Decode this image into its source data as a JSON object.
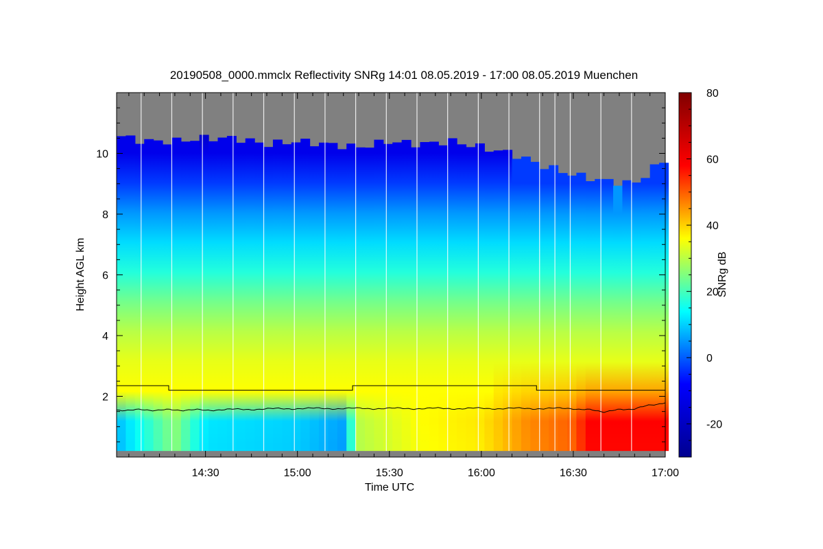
{
  "chart_data": {
    "type": "heatmap",
    "title": "20190508_0000.mmclx Reflectivity SNRg   14:01 08.05.2019 - 17:00 08.05.2019 Muenchen",
    "xlabel": "Time UTC",
    "ylabel": "Height AGL km",
    "colorbar_label": "SNRg dB",
    "x_range": [
      "14:01",
      "17:00"
    ],
    "x_ticks": [
      "14:30",
      "15:00",
      "15:30",
      "16:00",
      "16:30",
      "17:00"
    ],
    "ylim": [
      0,
      12
    ],
    "y_ticks": [
      "2",
      "4",
      "6",
      "8",
      "10"
    ],
    "colorbar_range": [
      -30,
      80
    ],
    "colorbar_ticks": [
      "-20",
      "0",
      "20",
      "40",
      "60",
      "80"
    ],
    "no_data_color": "#808080",
    "colormap": [
      "#00008f",
      "#0000ff",
      "#00ffff",
      "#ffff00",
      "#ff0000",
      "#800000"
    ],
    "signal_top_km": [
      [
        "14:01",
        10.6
      ],
      [
        "14:10",
        10.4
      ],
      [
        "14:20",
        10.4
      ],
      [
        "14:30",
        10.5
      ],
      [
        "14:40",
        10.5
      ],
      [
        "14:50",
        10.3
      ],
      [
        "15:00",
        10.4
      ],
      [
        "15:10",
        10.3
      ],
      [
        "15:20",
        10.2
      ],
      [
        "15:30",
        10.4
      ],
      [
        "15:40",
        10.3
      ],
      [
        "15:50",
        10.4
      ],
      [
        "16:00",
        10.2
      ],
      [
        "16:10",
        10.0
      ],
      [
        "16:20",
        9.6
      ],
      [
        "16:30",
        9.3
      ],
      [
        "16:40",
        9.1
      ],
      [
        "16:50",
        9.0
      ],
      [
        "17:00",
        9.8
      ]
    ],
    "snr_profile_db": [
      [
        0.2,
        28
      ],
      [
        1.0,
        30
      ],
      [
        2.0,
        36
      ],
      [
        3.0,
        34
      ],
      [
        4.0,
        30
      ],
      [
        5.0,
        24
      ],
      [
        6.0,
        17
      ],
      [
        7.0,
        11
      ],
      [
        8.0,
        5
      ],
      [
        9.0,
        -3
      ],
      [
        10.0,
        -12
      ],
      [
        10.6,
        -18
      ]
    ],
    "snr_low_layer_db": [
      [
        "14:01",
        8
      ],
      [
        "14:20",
        26
      ],
      [
        "14:30",
        12
      ],
      [
        "15:00",
        10
      ],
      [
        "15:15",
        6
      ],
      [
        "15:20",
        30
      ],
      [
        "15:40",
        36
      ],
      [
        "16:00",
        38
      ],
      [
        "16:15",
        46
      ],
      [
        "16:30",
        50
      ],
      [
        "16:35",
        58
      ],
      [
        "17:00",
        58
      ]
    ],
    "series": [
      {
        "values": [
          [
            "14:01",
            2.35
          ],
          [
            "14:18",
            2.35
          ],
          [
            "14:18",
            2.2
          ],
          [
            "15:18",
            2.2
          ],
          [
            "15:18",
            2.35
          ],
          [
            "16:18",
            2.35
          ],
          [
            "16:18",
            2.2
          ],
          [
            "17:00",
            2.2
          ]
        ]
      },
      {
        "values": [
          [
            "14:01",
            1.55
          ],
          [
            "14:30",
            1.55
          ],
          [
            "15:00",
            1.6
          ],
          [
            "15:30",
            1.6
          ],
          [
            "16:00",
            1.6
          ],
          [
            "16:30",
            1.6
          ],
          [
            "16:40",
            1.5
          ],
          [
            "16:50",
            1.6
          ],
          [
            "17:00",
            1.8
          ]
        ]
      }
    ],
    "gaps": [
      "14:09",
      "14:19",
      "14:29",
      "14:39",
      "14:49",
      "14:59",
      "15:09",
      "15:19",
      "15:29",
      "15:39",
      "15:49",
      "15:59",
      "16:09",
      "16:19",
      "16:24",
      "16:29",
      "16:39",
      "16:49"
    ]
  }
}
